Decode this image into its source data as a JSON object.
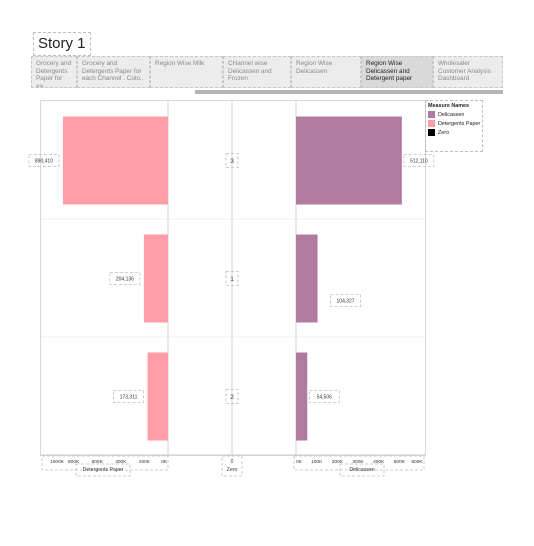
{
  "story": {
    "title": "Story 1",
    "points": [
      {
        "label": "Grocery and Detergents Paper for ea..",
        "active": false
      },
      {
        "label": "Grocery and Detergents Paper for each Channel . Colo..",
        "active": false
      },
      {
        "label": "Region Wise Milk",
        "active": false
      },
      {
        "label": "CHannel wise Delicassen and Frozen",
        "active": false
      },
      {
        "label": "Region Wise Delicassen",
        "active": false
      },
      {
        "label": "Region Wise Delicassen and Detergent paper",
        "active": true
      },
      {
        "label": "Wholesaler Customer Analysis Dashboard",
        "active": false
      }
    ]
  },
  "legend": {
    "title": "Measure Names",
    "items": [
      {
        "label": "Delicassen",
        "color": "#b07aa1"
      },
      {
        "label": "Detergents Paper",
        "color": "#ff9da7"
      },
      {
        "label": "Zero",
        "color": "#000000"
      }
    ]
  },
  "chart_data": {
    "type": "bar",
    "orientation": "horizontal",
    "categories": [
      "3",
      "1",
      "2"
    ],
    "category_label": "Zero",
    "category_axis_value": "0",
    "series": [
      {
        "name": "Detergents Paper",
        "values": [
          890410,
          204136,
          173311
        ],
        "labels": [
          "890,410",
          "204,136",
          "173,311"
        ],
        "color": "#ff9da7",
        "reversed": true,
        "axis": {
          "label": "Detergents Paper",
          "ticks": [
            "1000K",
            "800K",
            "600K",
            "400K",
            "200K",
            "0K"
          ]
        }
      },
      {
        "name": "Delicassen",
        "values": [
          512110,
          104327,
          54506
        ],
        "labels": [
          "512,110",
          "104,327",
          "54,506"
        ],
        "color": "#b07aa1",
        "reversed": false,
        "axis": {
          "label": "Delicassen",
          "ticks": [
            "0K",
            "100K",
            "200K",
            "300K",
            "400K",
            "500K",
            "600K"
          ]
        }
      }
    ]
  }
}
